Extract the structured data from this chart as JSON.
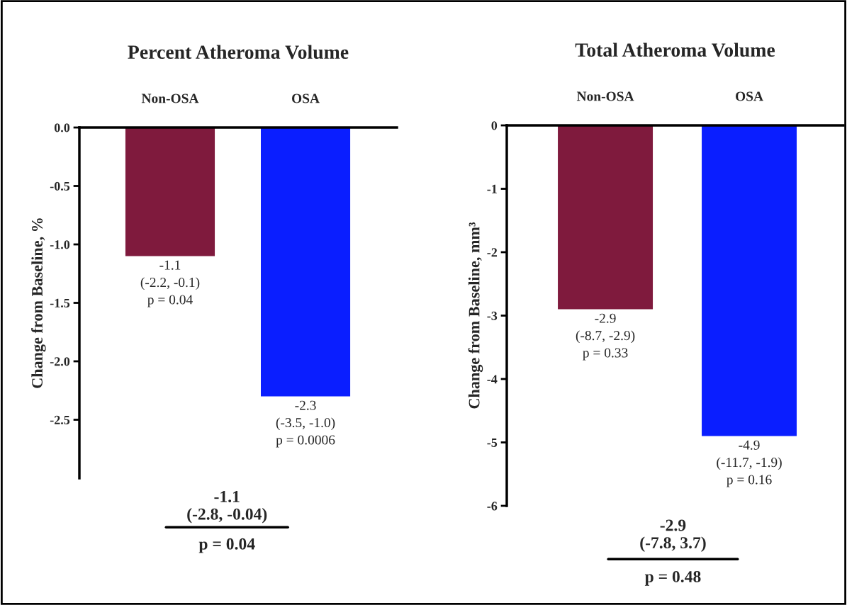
{
  "chart_data": [
    {
      "type": "bar",
      "title": "Percent Atheroma Volume",
      "ylabel": "Change from Baseline, %",
      "categories": [
        "Non-OSA",
        "OSA"
      ],
      "values": [
        -1.1,
        -2.3
      ],
      "colors": [
        "#7f1a3d",
        "#0a1eff"
      ],
      "value_labels": [
        "-1.1\n(-2.2, -0.1)\np = 0.04",
        "-2.3\n(-3.5, -1.0)\np = 0.0006"
      ],
      "ylim": [
        -3.0,
        0
      ],
      "yticks": [
        {
          "value": 0,
          "label": "0.0"
        },
        {
          "value": -0.5,
          "label": "-0.5"
        },
        {
          "value": -1.0,
          "label": "-1.0"
        },
        {
          "value": -1.5,
          "label": "-1.5"
        },
        {
          "value": -2.0,
          "label": "-2.0"
        },
        {
          "value": -2.5,
          "label": "-2.5"
        }
      ],
      "annotations": [
        "-1.1\n(-2.8, -0.04)",
        "p = 0.04"
      ],
      "grid": false,
      "legend": false
    },
    {
      "type": "bar",
      "title": "Total Atheroma Volume",
      "ylabel": "Change from Baseline, mm³",
      "categories": [
        "Non-OSA",
        "OSA"
      ],
      "values": [
        -2.9,
        -4.9
      ],
      "colors": [
        "#7f1a3d",
        "#0a1eff"
      ],
      "value_labels": [
        "-2.9\n(-8.7, -2.9)\np = 0.33",
        "-4.9\n(-11.7, -1.9)\np = 0.16"
      ],
      "ylim": [
        -6,
        0
      ],
      "yticks": [
        {
          "value": 0,
          "label": "0"
        },
        {
          "value": -1,
          "label": "-1"
        },
        {
          "value": -2,
          "label": "-2"
        },
        {
          "value": -3,
          "label": "-3"
        },
        {
          "value": -4,
          "label": "-4"
        },
        {
          "value": -5,
          "label": "-5"
        },
        {
          "value": -6,
          "label": "-6"
        }
      ],
      "annotations": [
        "-2.9\n(-7.8, 3.7)",
        "p = 0.48"
      ],
      "grid": false,
      "legend": false
    }
  ]
}
